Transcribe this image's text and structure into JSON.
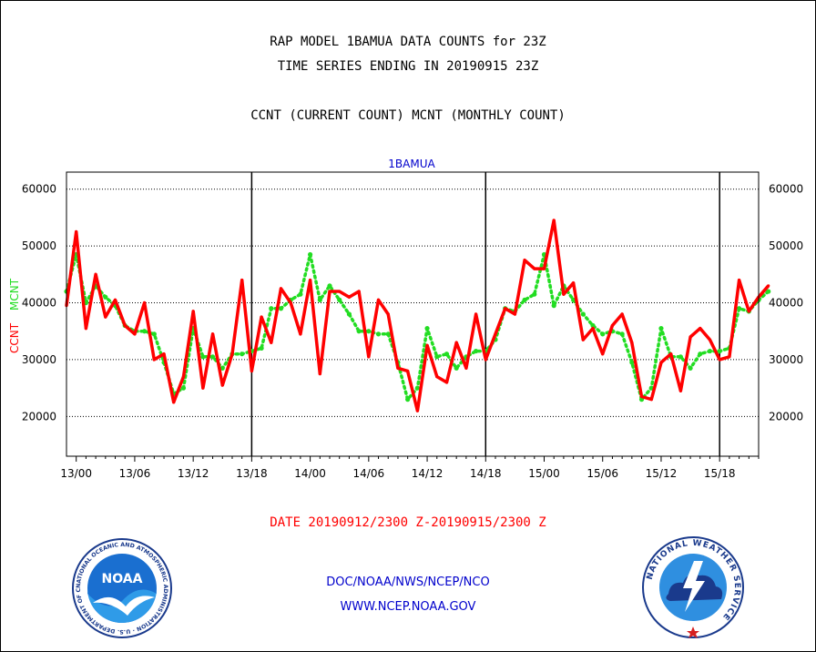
{
  "header": {
    "title_line1": "RAP MODEL 1BAMUA DATA COUNTS for 23Z",
    "title_line2": "TIME SERIES ENDING IN 20190915 23Z",
    "subtitle": "CCNT (CURRENT COUNT) MCNT (MONTHLY COUNT)"
  },
  "footer": {
    "date_range": "DATE 20190912/2300 Z-20190915/2300 Z",
    "org_path": "DOC/NOAA/NWS/NCEP/NCO",
    "website": "WWW.NCEP.NOAA.GOV"
  },
  "logos": {
    "noaa": {
      "center": "NOAA",
      "ring": "NATIONAL OCEANIC AND ATMOSPHERIC ADMINISTRATION · U.S. DEPARTMENT OF COMMERCE"
    },
    "nws": {
      "ring": "NATIONAL WEATHER SERVICE"
    }
  },
  "colors": {
    "ccnt": "#ff0000",
    "mcnt": "#22dd22",
    "station": "#0000cc",
    "footer_link": "#0000cc",
    "date_text": "#ff0000"
  },
  "chart_data": {
    "type": "line",
    "title": "1BAMUA",
    "ylabel_left": [
      "CCNT",
      "MCNT"
    ],
    "ylim": [
      13000,
      63000
    ],
    "yticks": [
      20000,
      30000,
      40000,
      50000,
      60000
    ],
    "ytick_labels": [
      "20000",
      "30000",
      "40000",
      "50000",
      "60000"
    ],
    "x_start_hour": -1,
    "x_end_hour": 70,
    "xticks": [
      0,
      6,
      12,
      18,
      24,
      30,
      36,
      42,
      48,
      54,
      60,
      66
    ],
    "xtick_labels": [
      "13/00",
      "13/06",
      "13/12",
      "13/18",
      "14/00",
      "14/06",
      "14/12",
      "14/18",
      "15/00",
      "15/06",
      "15/12",
      "15/18"
    ],
    "day_boundaries": [
      18,
      42,
      66
    ],
    "grid": true,
    "series": [
      {
        "name": "CCNT",
        "values": [
          39500,
          52500,
          35500,
          45000,
          37500,
          40500,
          36000,
          34500,
          40000,
          30000,
          31000,
          22500,
          27000,
          38500,
          25000,
          34500,
          25500,
          31000,
          44000,
          28000,
          37500,
          33000,
          42500,
          40000,
          34500,
          44000,
          27500,
          42000,
          42000,
          41000,
          42000,
          30500,
          40500,
          38000,
          28500,
          28000,
          21000,
          32500,
          27000,
          26000,
          33000,
          28500,
          38000,
          30000,
          34500,
          39000,
          38000,
          47500,
          46000,
          46000,
          54500,
          41500,
          43500,
          33500,
          35500,
          31000,
          36000,
          38000,
          33000,
          23500,
          23000,
          29500,
          31000,
          24500,
          34000,
          35500,
          33500,
          30000,
          30500,
          44000,
          38500,
          41000,
          43000
        ]
      },
      {
        "name": "MCNT",
        "values": [
          42000,
          48500,
          40000,
          43000,
          41000,
          39500,
          36000,
          35000,
          35000,
          34500,
          29500,
          24000,
          25000,
          35500,
          30500,
          30500,
          28500,
          31000,
          31000,
          31500,
          32000,
          39000,
          39000,
          40500,
          41500,
          48500,
          40500,
          43000,
          40500,
          38000,
          35000,
          35000,
          34500,
          34500,
          29500,
          23000,
          25000,
          35500,
          30500,
          31000,
          28500,
          30500,
          31500,
          31500,
          33500,
          39000,
          38500,
          40500,
          41500,
          48500,
          39500,
          43000,
          40500,
          38000,
          36000,
          34500,
          35000,
          34500,
          29500,
          23000,
          25000,
          35500,
          30500,
          30500,
          28500,
          31000,
          31500,
          31500,
          32000,
          39000,
          38500,
          40500,
          42000
        ]
      }
    ]
  }
}
